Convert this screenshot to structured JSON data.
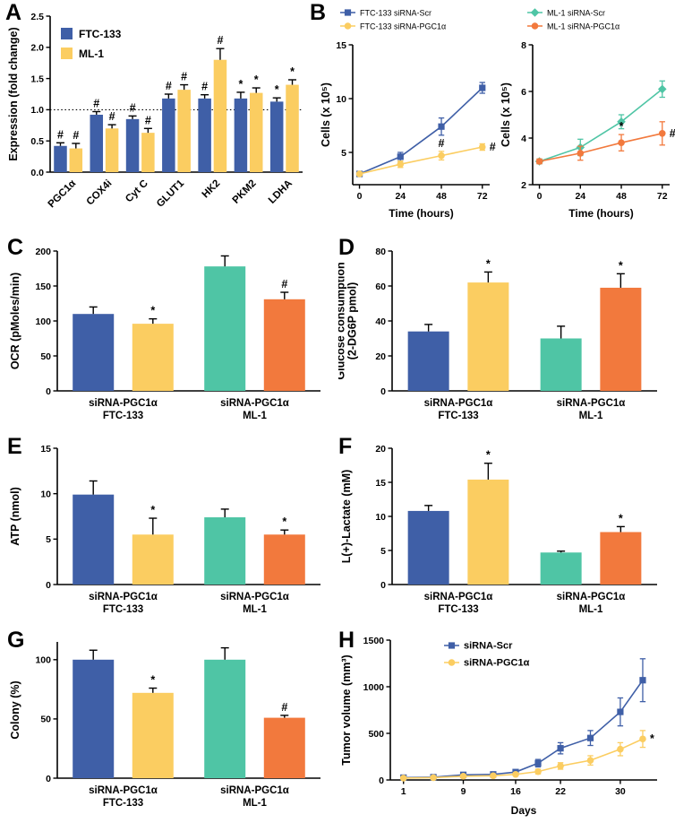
{
  "colors": {
    "blue": "#3f5fa7",
    "yellow": "#fbcd61",
    "green": "#4fc5a5",
    "orange": "#f2793d",
    "axis": "#000000"
  },
  "chart_data": {
    "A": {
      "label": "A",
      "kind": "bar",
      "type": "bar",
      "ylabel": [
        "Expression (fold change)"
      ],
      "ylim": [
        0,
        2.5
      ],
      "yticks": [
        "0.0",
        "0.5",
        "1.0",
        "1.5",
        "2.0",
        "2.5"
      ],
      "refline": 1.0,
      "xtick_rotate": true,
      "legend": [
        {
          "label": "FTC-133",
          "color": "blue"
        },
        {
          "label": "ML-1",
          "color": "yellow"
        }
      ],
      "groups": [
        {
          "label": [
            "PGC1α"
          ],
          "bars": [
            {
              "color": "blue",
              "value": 0.42,
              "err": 0.05,
              "sig": "#"
            },
            {
              "color": "yellow",
              "value": 0.38,
              "err": 0.08,
              "sig": "#"
            }
          ]
        },
        {
          "label": [
            "COX4i"
          ],
          "bars": [
            {
              "color": "blue",
              "value": 0.92,
              "err": 0.05,
              "sig": "#"
            },
            {
              "color": "yellow",
              "value": 0.7,
              "err": 0.06,
              "sig": "#"
            }
          ]
        },
        {
          "label": [
            "Cyt C"
          ],
          "bars": [
            {
              "color": "blue",
              "value": 0.85,
              "err": 0.05,
              "sig": "#"
            },
            {
              "color": "yellow",
              "value": 0.63,
              "err": 0.07,
              "sig": "#"
            }
          ]
        },
        {
          "label": [
            "GLUT1"
          ],
          "bars": [
            {
              "color": "blue",
              "value": 1.18,
              "err": 0.07,
              "sig": "#"
            },
            {
              "color": "yellow",
              "value": 1.32,
              "err": 0.08,
              "sig": "#"
            }
          ]
        },
        {
          "label": [
            "HK2"
          ],
          "bars": [
            {
              "color": "blue",
              "value": 1.18,
              "err": 0.06,
              "sig": "#"
            },
            {
              "color": "yellow",
              "value": 1.8,
              "err": 0.18,
              "sig": "#"
            }
          ]
        },
        {
          "label": [
            "PKM2"
          ],
          "bars": [
            {
              "color": "blue",
              "value": 1.18,
              "err": 0.1,
              "sig": "*"
            },
            {
              "color": "yellow",
              "value": 1.27,
              "err": 0.08,
              "sig": "*"
            }
          ]
        },
        {
          "label": [
            "LDHA"
          ],
          "bars": [
            {
              "color": "blue",
              "value": 1.13,
              "err": 0.06,
              "sig": "*"
            },
            {
              "color": "yellow",
              "value": 1.4,
              "err": 0.08,
              "sig": "*"
            }
          ]
        }
      ]
    },
    "B1": {
      "label": "B",
      "kind": "line",
      "type": "line",
      "ylabel": [
        "Cells (x 10⁵)"
      ],
      "xlabel": "Time (hours)",
      "ylim": [
        2,
        15
      ],
      "yticks": [
        "5",
        "10",
        "15"
      ],
      "x": [
        0,
        24,
        48,
        72
      ],
      "xticks": [
        "0",
        "24",
        "48",
        "72"
      ],
      "series": [
        {
          "name": "FTC-133 siRNA-Scr",
          "color": "blue",
          "marker": "square",
          "values": [
            3.0,
            4.6,
            7.4,
            11.0
          ],
          "errs": [
            0.2,
            0.4,
            0.8,
            0.5
          ],
          "sig": [
            "",
            "",
            "",
            ""
          ]
        },
        {
          "name": "FTC-133 siRNA-PGC1α",
          "color": "yellow",
          "marker": "circle",
          "values": [
            3.0,
            3.9,
            4.7,
            5.5
          ],
          "errs": [
            0.15,
            0.3,
            0.4,
            0.3
          ],
          "sig": [
            "",
            "",
            "#",
            "#"
          ]
        }
      ]
    },
    "B2": {
      "kind": "line",
      "type": "line",
      "ylabel": [
        "Cells (x 10⁵)"
      ],
      "xlabel": "Time (hours)",
      "ylim": [
        2,
        8
      ],
      "yticks": [
        "2",
        "4",
        "6",
        "8"
      ],
      "x": [
        0,
        24,
        48,
        72
      ],
      "xticks": [
        "0",
        "24",
        "48",
        "72"
      ],
      "series": [
        {
          "name": "ML-1 siRNA-Scr",
          "color": "green",
          "marker": "diamond",
          "values": [
            3.0,
            3.6,
            4.7,
            6.1
          ],
          "errs": [
            0.1,
            0.35,
            0.3,
            0.35
          ],
          "sig": [
            "",
            "",
            "",
            ""
          ]
        },
        {
          "name": "ML-1 siRNA-PGC1α",
          "color": "orange",
          "marker": "circle",
          "values": [
            3.0,
            3.35,
            3.8,
            4.2
          ],
          "errs": [
            0.1,
            0.3,
            0.35,
            0.5
          ],
          "sig": [
            "",
            "",
            "*",
            "#"
          ]
        }
      ]
    },
    "C": {
      "label": "C",
      "kind": "bar",
      "type": "bar",
      "ylabel": [
        "OCR (pMoles/min)"
      ],
      "ylim": [
        0,
        200
      ],
      "yticks": [
        "0",
        "50",
        "100",
        "150",
        "200"
      ],
      "groups": [
        {
          "label": [
            "siRNA-PGC1α",
            "FTC-133"
          ],
          "bars": [
            {
              "color": "blue",
              "value": 110,
              "err": 10,
              "sig": ""
            },
            {
              "color": "yellow",
              "value": 96,
              "err": 7,
              "sig": "*"
            }
          ]
        },
        {
          "label": [
            "siRNA-PGC1α",
            "ML-1"
          ],
          "bars": [
            {
              "color": "green",
              "value": 178,
              "err": 15,
              "sig": ""
            },
            {
              "color": "orange",
              "value": 131,
              "err": 10,
              "sig": "#"
            }
          ]
        }
      ]
    },
    "D": {
      "label": "D",
      "kind": "bar",
      "type": "bar",
      "ylabel": [
        "Glucose consumption",
        "(2-DG6P pmol)"
      ],
      "ylim": [
        0,
        80
      ],
      "yticks": [
        "0",
        "20",
        "40",
        "60",
        "80"
      ],
      "groups": [
        {
          "label": [
            "siRNA-PGC1α",
            "FTC-133"
          ],
          "bars": [
            {
              "color": "blue",
              "value": 34,
              "err": 4,
              "sig": ""
            },
            {
              "color": "yellow",
              "value": 62,
              "err": 6,
              "sig": "*"
            }
          ]
        },
        {
          "label": [
            "siRNA-PGC1α",
            "ML-1"
          ],
          "bars": [
            {
              "color": "green",
              "value": 30,
              "err": 7,
              "sig": ""
            },
            {
              "color": "orange",
              "value": 59,
              "err": 8,
              "sig": "*"
            }
          ]
        }
      ]
    },
    "E": {
      "label": "E",
      "kind": "bar",
      "type": "bar",
      "ylabel": [
        "ATP (nmol)"
      ],
      "ylim": [
        0,
        15
      ],
      "yticks": [
        "0",
        "5",
        "10",
        "15"
      ],
      "groups": [
        {
          "label": [
            "siRNA-PGC1α",
            "FTC-133"
          ],
          "bars": [
            {
              "color": "blue",
              "value": 9.9,
              "err": 1.5,
              "sig": ""
            },
            {
              "color": "yellow",
              "value": 5.5,
              "err": 1.8,
              "sig": "*"
            }
          ]
        },
        {
          "label": [
            "siRNA-PGC1α",
            "ML-1"
          ],
          "bars": [
            {
              "color": "green",
              "value": 7.4,
              "err": 0.9,
              "sig": ""
            },
            {
              "color": "orange",
              "value": 5.5,
              "err": 0.5,
              "sig": "*"
            }
          ]
        }
      ]
    },
    "F": {
      "label": "F",
      "kind": "bar",
      "type": "bar",
      "ylabel": [
        "L(+)-Lactate (mM)"
      ],
      "ylim": [
        0,
        20
      ],
      "yticks": [
        "0",
        "5",
        "10",
        "15",
        "20"
      ],
      "groups": [
        {
          "label": [
            "siRNA-PGC1α",
            "FTC-133"
          ],
          "bars": [
            {
              "color": "blue",
              "value": 10.8,
              "err": 0.8,
              "sig": ""
            },
            {
              "color": "yellow",
              "value": 15.4,
              "err": 2.4,
              "sig": "*"
            }
          ]
        },
        {
          "label": [
            "siRNA-PGC1α",
            "ML-1"
          ],
          "bars": [
            {
              "color": "green",
              "value": 4.7,
              "err": 0.2,
              "sig": ""
            },
            {
              "color": "orange",
              "value": 7.7,
              "err": 0.8,
              "sig": "*"
            }
          ]
        }
      ]
    },
    "G": {
      "label": "G",
      "kind": "bar",
      "type": "bar",
      "ylabel": [
        "Colony (%)"
      ],
      "ylim": [
        0,
        115
      ],
      "yticks": [
        "0",
        "50",
        "100"
      ],
      "groups": [
        {
          "label": [
            "siRNA-PGC1α",
            "FTC-133"
          ],
          "bars": [
            {
              "color": "blue",
              "value": 100,
              "err": 8,
              "sig": ""
            },
            {
              "color": "yellow",
              "value": 72,
              "err": 4,
              "sig": "*"
            }
          ]
        },
        {
          "label": [
            "siRNA-PGC1α",
            "ML-1"
          ],
          "bars": [
            {
              "color": "green",
              "value": 100,
              "err": 10,
              "sig": ""
            },
            {
              "color": "orange",
              "value": 51,
              "err": 2,
              "sig": "#"
            }
          ]
        }
      ]
    },
    "H": {
      "label": "H",
      "kind": "line",
      "type": "line",
      "ylabel": [
        "Tumor volume (mm³)"
      ],
      "xlabel": "Days",
      "ylim": [
        0,
        1500
      ],
      "yticks": [
        "0",
        "500",
        "1000",
        "1500"
      ],
      "x": [
        1,
        5,
        9,
        13,
        16,
        19,
        22,
        26,
        30,
        33
      ],
      "xticks": [
        "1",
        "9",
        "16",
        "22",
        "30"
      ],
      "series": [
        {
          "name": "siRNA-Scr",
          "color": "blue",
          "marker": "square",
          "values": [
            25,
            30,
            55,
            60,
            85,
            180,
            340,
            450,
            730,
            1070
          ],
          "errs": [
            10,
            10,
            15,
            15,
            20,
            40,
            60,
            80,
            150,
            230
          ],
          "sig": [
            "",
            "",
            "",
            "",
            "",
            "",
            "",
            "",
            "",
            ""
          ]
        },
        {
          "name": "siRNA-PGC1α",
          "color": "yellow",
          "marker": "circle",
          "values": [
            20,
            25,
            40,
            45,
            60,
            90,
            150,
            210,
            330,
            440
          ],
          "errs": [
            8,
            8,
            10,
            10,
            15,
            25,
            35,
            50,
            70,
            90
          ],
          "sig": [
            "",
            "",
            "",
            "",
            "",
            "",
            "",
            "",
            "",
            "*"
          ]
        }
      ]
    }
  }
}
